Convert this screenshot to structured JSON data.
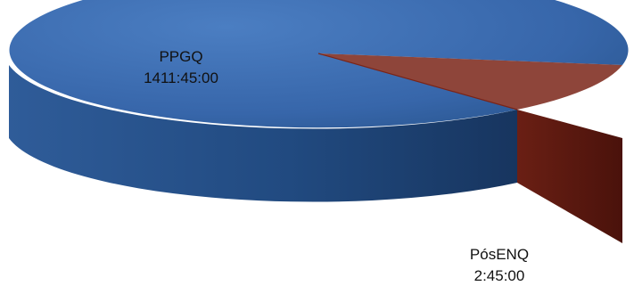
{
  "chart_data": {
    "type": "pie",
    "style": "3d",
    "unit": "hh:mm:ss",
    "slices": [
      {
        "name": "PPGQ",
        "value_label": "1411:45:00",
        "value_hours": 1411.75,
        "color": "#3a6bb0"
      },
      {
        "name": "PósENQ",
        "value_label": "2:45:00",
        "value_hours": 2.75,
        "color": "#7a2418"
      }
    ],
    "legend": "none",
    "data_labels": true
  }
}
